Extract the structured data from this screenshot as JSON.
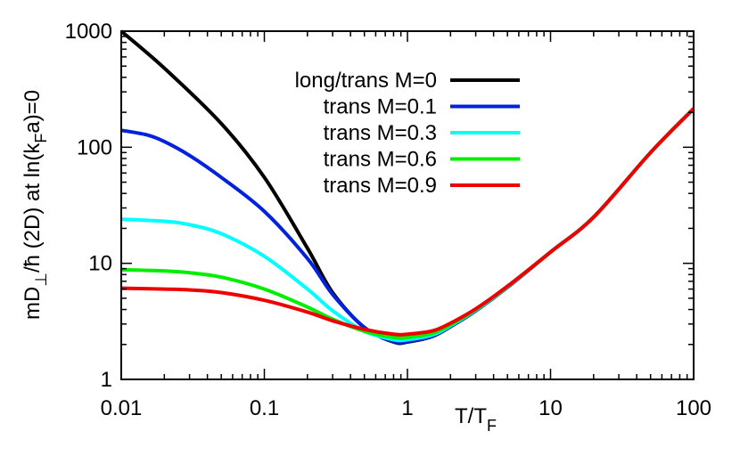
{
  "chart_data": {
    "type": "line",
    "title": "",
    "xlabel": "T/T_F",
    "ylabel": "mD_⊥/ħ  (2D) at ln(k_Fa)=0",
    "xscale": "log",
    "yscale": "log",
    "xlim": [
      0.01,
      100
    ],
    "ylim": [
      1,
      1000
    ],
    "xticks": [
      {
        "value": 0.01,
        "label": "0.01"
      },
      {
        "value": 0.1,
        "label": "0.1"
      },
      {
        "value": 1,
        "label": "1"
      },
      {
        "value": 10,
        "label": "10"
      },
      {
        "value": 100,
        "label": "100"
      }
    ],
    "yticks": [
      {
        "value": 1,
        "label": "1"
      },
      {
        "value": 10,
        "label": "10"
      },
      {
        "value": 100,
        "label": "100"
      },
      {
        "value": 1000,
        "label": "1000"
      }
    ],
    "grid": false,
    "legend_position": "top-right",
    "series": [
      {
        "name": "long/trans M=0",
        "color": "#000000",
        "x": [
          0.01,
          0.02,
          0.05,
          0.1,
          0.2,
          0.3,
          0.5,
          0.8,
          1,
          1.5,
          2,
          3,
          5,
          10,
          20,
          50,
          100
        ],
        "y": [
          1000,
          480,
          160,
          55,
          13.5,
          5.6,
          2.8,
          2.1,
          2.1,
          2.35,
          2.85,
          3.9,
          6.2,
          12.5,
          25,
          90,
          215
        ]
      },
      {
        "name": "trans M=0.1",
        "color": "#0022dd",
        "x": [
          0.01,
          0.015,
          0.02,
          0.03,
          0.05,
          0.1,
          0.2,
          0.3,
          0.5,
          0.8,
          1,
          1.5,
          2,
          3,
          5,
          10,
          20,
          50,
          100
        ],
        "y": [
          140,
          128,
          112,
          85,
          55,
          28,
          11,
          5.4,
          2.8,
          2.12,
          2.12,
          2.37,
          2.85,
          3.9,
          6.2,
          12.5,
          25,
          90,
          215
        ]
      },
      {
        "name": "trans M=0.3",
        "color": "#00ffff",
        "x": [
          0.01,
          0.02,
          0.03,
          0.05,
          0.1,
          0.2,
          0.3,
          0.5,
          0.8,
          1,
          1.5,
          2,
          3,
          5,
          10,
          20,
          50,
          100
        ],
        "y": [
          24,
          23,
          21.5,
          18,
          11.5,
          6,
          3.9,
          2.6,
          2.2,
          2.2,
          2.42,
          2.9,
          3.95,
          6.25,
          12.5,
          25,
          90,
          215
        ]
      },
      {
        "name": "trans M=0.6",
        "color": "#00ee00",
        "x": [
          0.01,
          0.02,
          0.03,
          0.05,
          0.1,
          0.2,
          0.3,
          0.5,
          0.8,
          1,
          1.5,
          2,
          3,
          5,
          10,
          20,
          50,
          100
        ],
        "y": [
          8.8,
          8.6,
          8.3,
          7.6,
          6,
          4.2,
          3.3,
          2.6,
          2.3,
          2.3,
          2.5,
          2.95,
          4.0,
          6.3,
          12.5,
          25,
          90,
          215
        ]
      },
      {
        "name": "trans M=0.9",
        "color": "#ee0000",
        "x": [
          0.01,
          0.02,
          0.03,
          0.05,
          0.1,
          0.2,
          0.3,
          0.5,
          0.8,
          1,
          1.5,
          2,
          3,
          5,
          10,
          20,
          50,
          100
        ],
        "y": [
          6.1,
          6.0,
          5.9,
          5.6,
          4.8,
          3.8,
          3.2,
          2.7,
          2.45,
          2.45,
          2.62,
          3.05,
          4.05,
          6.35,
          12.5,
          25,
          90,
          215
        ]
      }
    ]
  }
}
